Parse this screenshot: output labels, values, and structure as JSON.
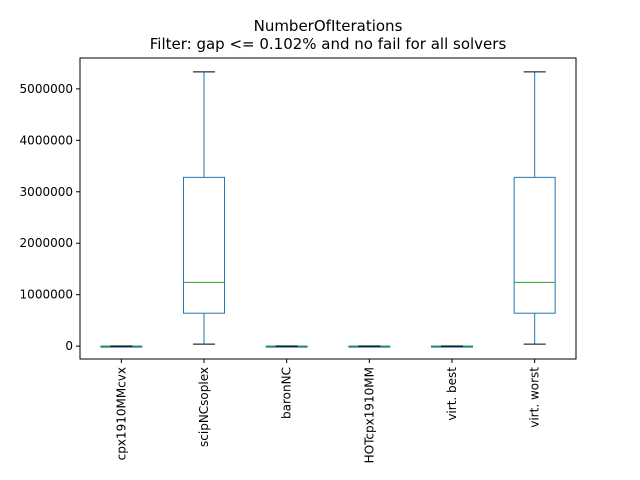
{
  "chart_data": {
    "type": "box",
    "title": "NumberOfIterations",
    "subtitle": "Filter: gap <= 0.102% and no fail for all solvers",
    "xlabel": "",
    "ylabel": "",
    "ylim": [
      -250000,
      5600000
    ],
    "yticks": [
      0,
      1000000,
      2000000,
      3000000,
      4000000,
      5000000
    ],
    "ytick_labels": [
      "0",
      "1000000",
      "2000000",
      "3000000",
      "4000000",
      "5000000"
    ],
    "grid": false,
    "legend": "none",
    "categories": [
      "cpx1910MMcvx",
      "scipNCsoplex",
      "baronNC",
      "HOTcpx1910MM",
      "virt. best",
      "virt. worst"
    ],
    "boxes": [
      {
        "whisker_low": 0,
        "q1": 0,
        "median": 0,
        "q3": 0,
        "whisker_high": 0
      },
      {
        "whisker_low": 40000,
        "q1": 640000,
        "median": 1240000,
        "q3": 3280000,
        "whisker_high": 5330000
      },
      {
        "whisker_low": 0,
        "q1": 0,
        "median": 0,
        "q3": 0,
        "whisker_high": 0
      },
      {
        "whisker_low": 0,
        "q1": 0,
        "median": 0,
        "q3": 0,
        "whisker_high": 0
      },
      {
        "whisker_low": 0,
        "q1": 0,
        "median": 0,
        "q3": 0,
        "whisker_high": 0
      },
      {
        "whisker_low": 40000,
        "q1": 640000,
        "median": 1240000,
        "q3": 3280000,
        "whisker_high": 5330000
      }
    ],
    "colors": {
      "box": "#1f77b4",
      "median": "#2ca02c",
      "cap": "#000000"
    }
  }
}
